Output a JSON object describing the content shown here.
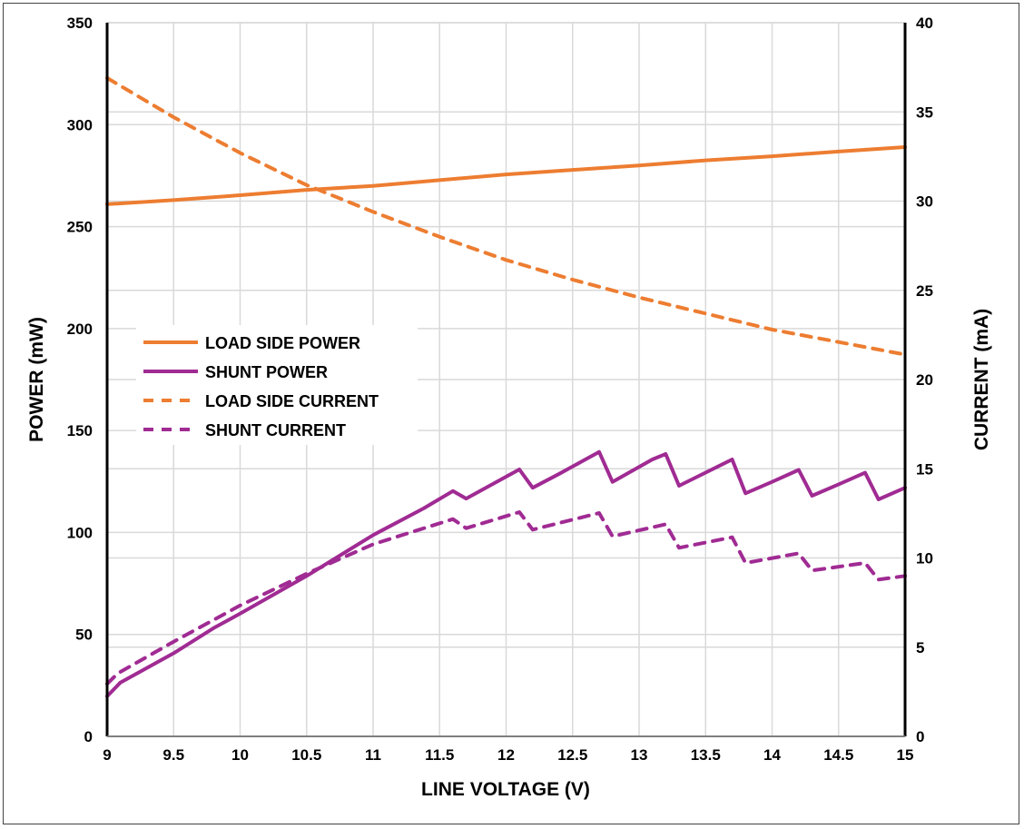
{
  "chart_data": {
    "type": "line",
    "xlabel": "LINE VOLTAGE (V)",
    "ylabel_left": "POWER (mW)",
    "ylabel_right": "CURRENT (mA)",
    "xlim": [
      9,
      15
    ],
    "ylim_left": [
      0,
      350
    ],
    "ylim_right": [
      0,
      40
    ],
    "x_ticks": [
      "9",
      "9.5",
      "10",
      "10.5",
      "11",
      "11.5",
      "12",
      "12.5",
      "13",
      "13.5",
      "14",
      "14.5",
      "15"
    ],
    "y_left_ticks": [
      "0",
      "50",
      "100",
      "150",
      "200",
      "250",
      "300",
      "350"
    ],
    "y_right_ticks": [
      "0",
      "5",
      "10",
      "15",
      "20",
      "25",
      "30",
      "35",
      "40"
    ],
    "grid": true,
    "legend_position": "middle-left",
    "series": [
      {
        "name": "LOAD SIDE POWER",
        "axis": "left",
        "style": "solid",
        "color": "#ED7D31",
        "x": [
          9,
          9.5,
          10,
          10.5,
          11,
          11.5,
          12,
          12.5,
          13,
          13.5,
          14,
          14.5,
          15
        ],
        "y": [
          261,
          263,
          265.4,
          268,
          270,
          272.8,
          275.6,
          277.8,
          280,
          282.5,
          284.5,
          286.8,
          289
        ]
      },
      {
        "name": "SHUNT POWER",
        "axis": "left",
        "style": "solid",
        "color": "#A02B93",
        "x": [
          9,
          9.1,
          9.5,
          9.8,
          10,
          10.5,
          11,
          11.38,
          11.6,
          11.7,
          12.1,
          12.2,
          12.4,
          12.7,
          12.8,
          13.1,
          13.2,
          13.3,
          13.7,
          13.8,
          14,
          14.2,
          14.3,
          14.5,
          14.7,
          14.8,
          15
        ],
        "y": [
          19.7,
          26.4,
          40.8,
          53.1,
          60.2,
          78.7,
          98.7,
          111.8,
          120.3,
          116.6,
          130.9,
          121.9,
          128.8,
          139.5,
          124.8,
          135.8,
          138.5,
          122.9,
          135.8,
          119.2,
          124.8,
          130.7,
          118,
          123.6,
          129.3,
          116.2,
          121.9
        ]
      },
      {
        "name": "LOAD SIDE CURRENT",
        "axis": "right",
        "style": "dashed",
        "color": "#ED7D31",
        "x": [
          9,
          9.5,
          10,
          10.5,
          11,
          11.5,
          12,
          12.5,
          13,
          13.5,
          14,
          14.5,
          15
        ],
        "y": [
          36.9,
          34.7,
          32.7,
          30.9,
          29.4,
          28.0,
          26.7,
          25.6,
          24.6,
          23.7,
          22.8,
          22.1,
          21.4
        ]
      },
      {
        "name": "SHUNT CURRENT",
        "axis": "right",
        "style": "dashed",
        "color": "#A02B93",
        "x": [
          9,
          9.08,
          9.5,
          10,
          10.5,
          11,
          11.6,
          11.7,
          12.1,
          12.2,
          12.7,
          12.8,
          13.2,
          13.3,
          13.7,
          13.8,
          14.2,
          14.3,
          14.7,
          14.8,
          15
        ],
        "y": [
          2.94,
          3.53,
          5.31,
          7.34,
          9.12,
          10.77,
          12.18,
          11.67,
          12.57,
          11.59,
          12.52,
          11.21,
          11.89,
          10.57,
          11.16,
          9.72,
          10.26,
          9.3,
          9.72,
          8.79,
          8.99
        ]
      }
    ]
  }
}
